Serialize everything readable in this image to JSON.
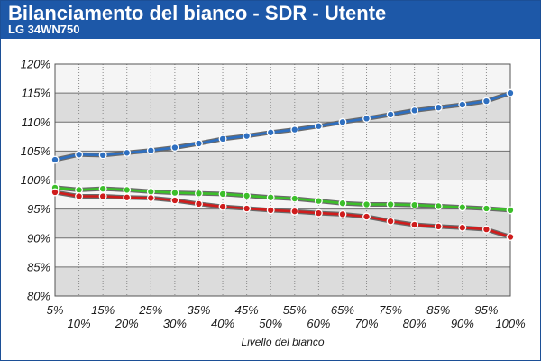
{
  "header": {
    "title": "Bilanciamento del bianco - SDR - Utente",
    "subtitle": "LG 34WN750"
  },
  "colors": {
    "header_bg": "#1d58a8",
    "band_dark": "#dcdcdc",
    "band_light": "#f5f5f5"
  },
  "chart_data": {
    "type": "line",
    "title": "Bilanciamento del bianco - SDR - Utente",
    "subtitle": "LG 34WN750",
    "xlabel": "Livello del bianco",
    "ylabel": "",
    "categories": [
      "5%",
      "10%",
      "15%",
      "20%",
      "25%",
      "30%",
      "35%",
      "40%",
      "45%",
      "50%",
      "55%",
      "60%",
      "65%",
      "70%",
      "75%",
      "80%",
      "85%",
      "90%",
      "95%",
      "100%"
    ],
    "ylim": [
      80,
      120
    ],
    "yticks": [
      "80%",
      "85%",
      "90%",
      "95%",
      "100%",
      "105%",
      "110%",
      "115%",
      "120%"
    ],
    "grid": true,
    "legend": "none",
    "series": [
      {
        "color": "#2e6fc0",
        "values": [
          103.5,
          104.4,
          104.3,
          104.7,
          105.1,
          105.6,
          106.3,
          107.1,
          107.6,
          108.2,
          108.7,
          109.3,
          110.0,
          110.6,
          111.3,
          112.0,
          112.5,
          113.0,
          113.6,
          115.0
        ]
      },
      {
        "color": "#3cbf2a",
        "values": [
          98.7,
          98.3,
          98.5,
          98.3,
          98.0,
          97.8,
          97.7,
          97.6,
          97.3,
          97.0,
          96.8,
          96.4,
          96.0,
          95.8,
          95.8,
          95.7,
          95.5,
          95.3,
          95.1,
          94.8
        ]
      },
      {
        "color": "#cf1c1c",
        "values": [
          97.9,
          97.2,
          97.2,
          97.0,
          96.9,
          96.5,
          95.9,
          95.4,
          95.1,
          94.8,
          94.6,
          94.3,
          94.1,
          93.7,
          92.9,
          92.3,
          92.0,
          91.8,
          91.5,
          90.2
        ]
      }
    ]
  }
}
